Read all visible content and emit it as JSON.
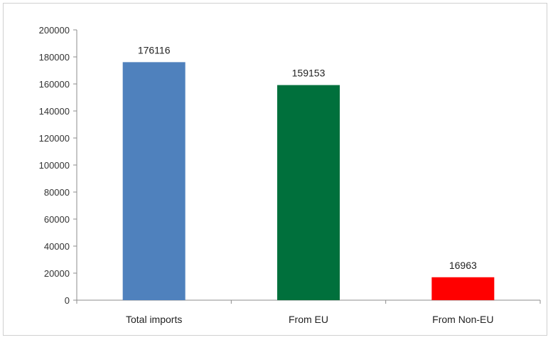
{
  "chart_data": {
    "type": "bar",
    "categories": [
      "Total imports",
      "From EU",
      "From Non-EU"
    ],
    "values": [
      176116,
      159153,
      16963
    ],
    "data_labels": [
      "176116",
      "159153",
      "16963"
    ],
    "colors": [
      "#4f81bd",
      "#00703c",
      "#ff0000"
    ],
    "ylim": [
      0,
      200000
    ],
    "yticks": [
      0,
      20000,
      40000,
      60000,
      80000,
      100000,
      120000,
      140000,
      160000,
      180000,
      200000
    ],
    "ytick_labels": [
      "0",
      "20000",
      "40000",
      "60000",
      "80000",
      "100000",
      "120000",
      "140000",
      "160000",
      "180000",
      "200000"
    ],
    "grid": false,
    "legend": false
  }
}
